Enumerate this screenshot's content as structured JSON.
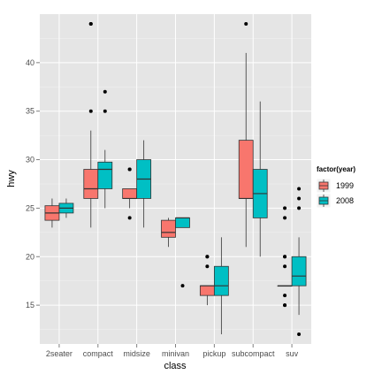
{
  "chart_data": {
    "type": "boxplot",
    "xlabel": "class",
    "ylabel": "hwy",
    "categories": [
      "2seater",
      "compact",
      "midsize",
      "minivan",
      "pickup",
      "subcompact",
      "suv"
    ],
    "ylim": [
      11,
      45
    ],
    "yticks": [
      15,
      20,
      25,
      30,
      35,
      40
    ],
    "grid": true,
    "legend": {
      "title": "factor(year)",
      "placement": "right",
      "entries": [
        "1999",
        "2008"
      ]
    },
    "colors": {
      "1999": "#f8766d",
      "2008": "#00bfc4",
      "panel": "#e5e5e5",
      "outline": "#333333"
    },
    "series": [
      {
        "name": "1999",
        "boxes": [
          {
            "category": "2seater",
            "lower_whisker": 23,
            "q1": 23.75,
            "median": 24.5,
            "q3": 25.25,
            "upper_whisker": 26,
            "outliers": []
          },
          {
            "category": "compact",
            "lower_whisker": 23,
            "q1": 26,
            "median": 27,
            "q3": 29,
            "upper_whisker": 33,
            "outliers": [
              35,
              44,
              44
            ]
          },
          {
            "category": "midsize",
            "lower_whisker": 25,
            "q1": 26,
            "median": 26,
            "q3": 27,
            "upper_whisker": 27,
            "outliers": [
              24,
              29,
              29
            ]
          },
          {
            "category": "minivan",
            "lower_whisker": 21,
            "q1": 22,
            "median": 22.5,
            "q3": 23.75,
            "upper_whisker": 24,
            "outliers": []
          },
          {
            "category": "pickup",
            "lower_whisker": 15,
            "q1": 16,
            "median": 17,
            "q3": 17,
            "upper_whisker": 17,
            "outliers": [
              19,
              20,
              20
            ]
          },
          {
            "category": "subcompact",
            "lower_whisker": 21,
            "q1": 26,
            "median": 26,
            "q3": 32,
            "upper_whisker": 41,
            "outliers": [
              44
            ]
          },
          {
            "category": "suv",
            "lower_whisker": 17,
            "q1": 17,
            "median": 17,
            "q3": 17,
            "upper_whisker": 17,
            "outliers": [
              15,
              15,
              16,
              19,
              20,
              20,
              24,
              25
            ]
          }
        ]
      },
      {
        "name": "2008",
        "boxes": [
          {
            "category": "2seater",
            "lower_whisker": 24,
            "q1": 24.5,
            "median": 25,
            "q3": 25.5,
            "upper_whisker": 26,
            "outliers": []
          },
          {
            "category": "compact",
            "lower_whisker": 25,
            "q1": 27,
            "median": 29,
            "q3": 29.75,
            "upper_whisker": 31,
            "outliers": [
              35,
              37
            ]
          },
          {
            "category": "midsize",
            "lower_whisker": 23,
            "q1": 26,
            "median": 28,
            "q3": 30,
            "upper_whisker": 32,
            "outliers": []
          },
          {
            "category": "minivan",
            "lower_whisker": 23,
            "q1": 23,
            "median": 24,
            "q3": 24,
            "upper_whisker": 24,
            "outliers": [
              17
            ]
          },
          {
            "category": "pickup",
            "lower_whisker": 12,
            "q1": 16,
            "median": 17,
            "q3": 19,
            "upper_whisker": 22,
            "outliers": []
          },
          {
            "category": "subcompact",
            "lower_whisker": 20,
            "q1": 24,
            "median": 26.5,
            "q3": 29,
            "upper_whisker": 36,
            "outliers": []
          },
          {
            "category": "suv",
            "lower_whisker": 14,
            "q1": 17,
            "median": 18,
            "q3": 20,
            "upper_whisker": 22,
            "outliers": [
              12,
              25,
              26,
              27
            ]
          }
        ]
      }
    ]
  }
}
